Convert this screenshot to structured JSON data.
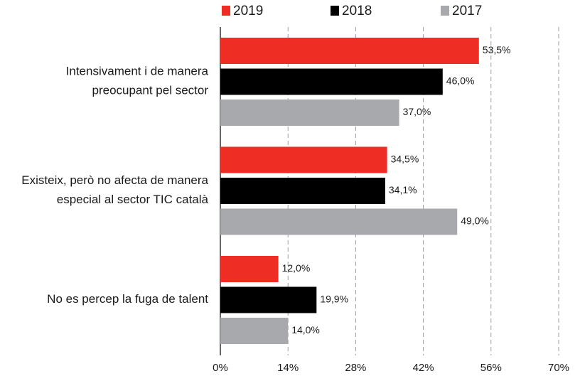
{
  "chart_data": {
    "type": "barh",
    "categories": [
      "Intensivament i de manera\npreocupant pel sector",
      "Existeix, però no afecta de manera\nespecial al sector TIC català",
      "No es percep la fuga de talent"
    ],
    "series": [
      {
        "name": "2019",
        "color": "#ee2e24",
        "values": [
          53.5,
          34.5,
          12.0
        ],
        "value_labels": [
          "53,5%",
          "34,5%",
          "12,0%"
        ]
      },
      {
        "name": "2018",
        "color": "#000000",
        "values": [
          46.0,
          34.1,
          19.9
        ],
        "value_labels": [
          "46,0%",
          "34,1%",
          "19,9%"
        ]
      },
      {
        "name": "2017",
        "color": "#a7a9ac",
        "values": [
          37.0,
          49.0,
          14.0
        ],
        "value_labels": [
          "37,0%",
          "49,0%",
          "14,0%"
        ]
      }
    ],
    "xlim": [
      0,
      70
    ],
    "xticks": [
      {
        "value": 0,
        "label": "0%"
      },
      {
        "value": 14,
        "label": "14%"
      },
      {
        "value": 28,
        "label": "28%"
      },
      {
        "value": 42,
        "label": "42%"
      },
      {
        "value": 56,
        "label": "56%"
      },
      {
        "value": 70,
        "label": "70%"
      }
    ],
    "grid": true,
    "legend": "top"
  }
}
